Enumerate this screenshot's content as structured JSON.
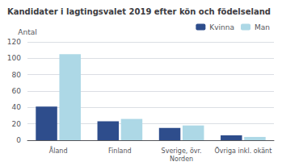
{
  "chart_data": {
    "type": "bar",
    "title": "Kandidater i lagtingsvalet 2019 efter kön och födelseland",
    "ylabel": "Antal",
    "categories": [
      "Åland",
      "Finland",
      "Sverige, övr.\nNorden",
      "Övriga inkl. okänt"
    ],
    "series": [
      {
        "name": "Kvinna",
        "color": "#2E4D8C",
        "values": [
          41,
          23,
          15,
          6
        ]
      },
      {
        "name": "Man",
        "color": "#ADD8E6",
        "values": [
          105,
          26,
          18,
          4
        ]
      }
    ],
    "ylim": [
      0,
      120
    ],
    "yticks": [
      0,
      20,
      40,
      60,
      80,
      100,
      120
    ],
    "grid": true,
    "legend": "upper right"
  }
}
